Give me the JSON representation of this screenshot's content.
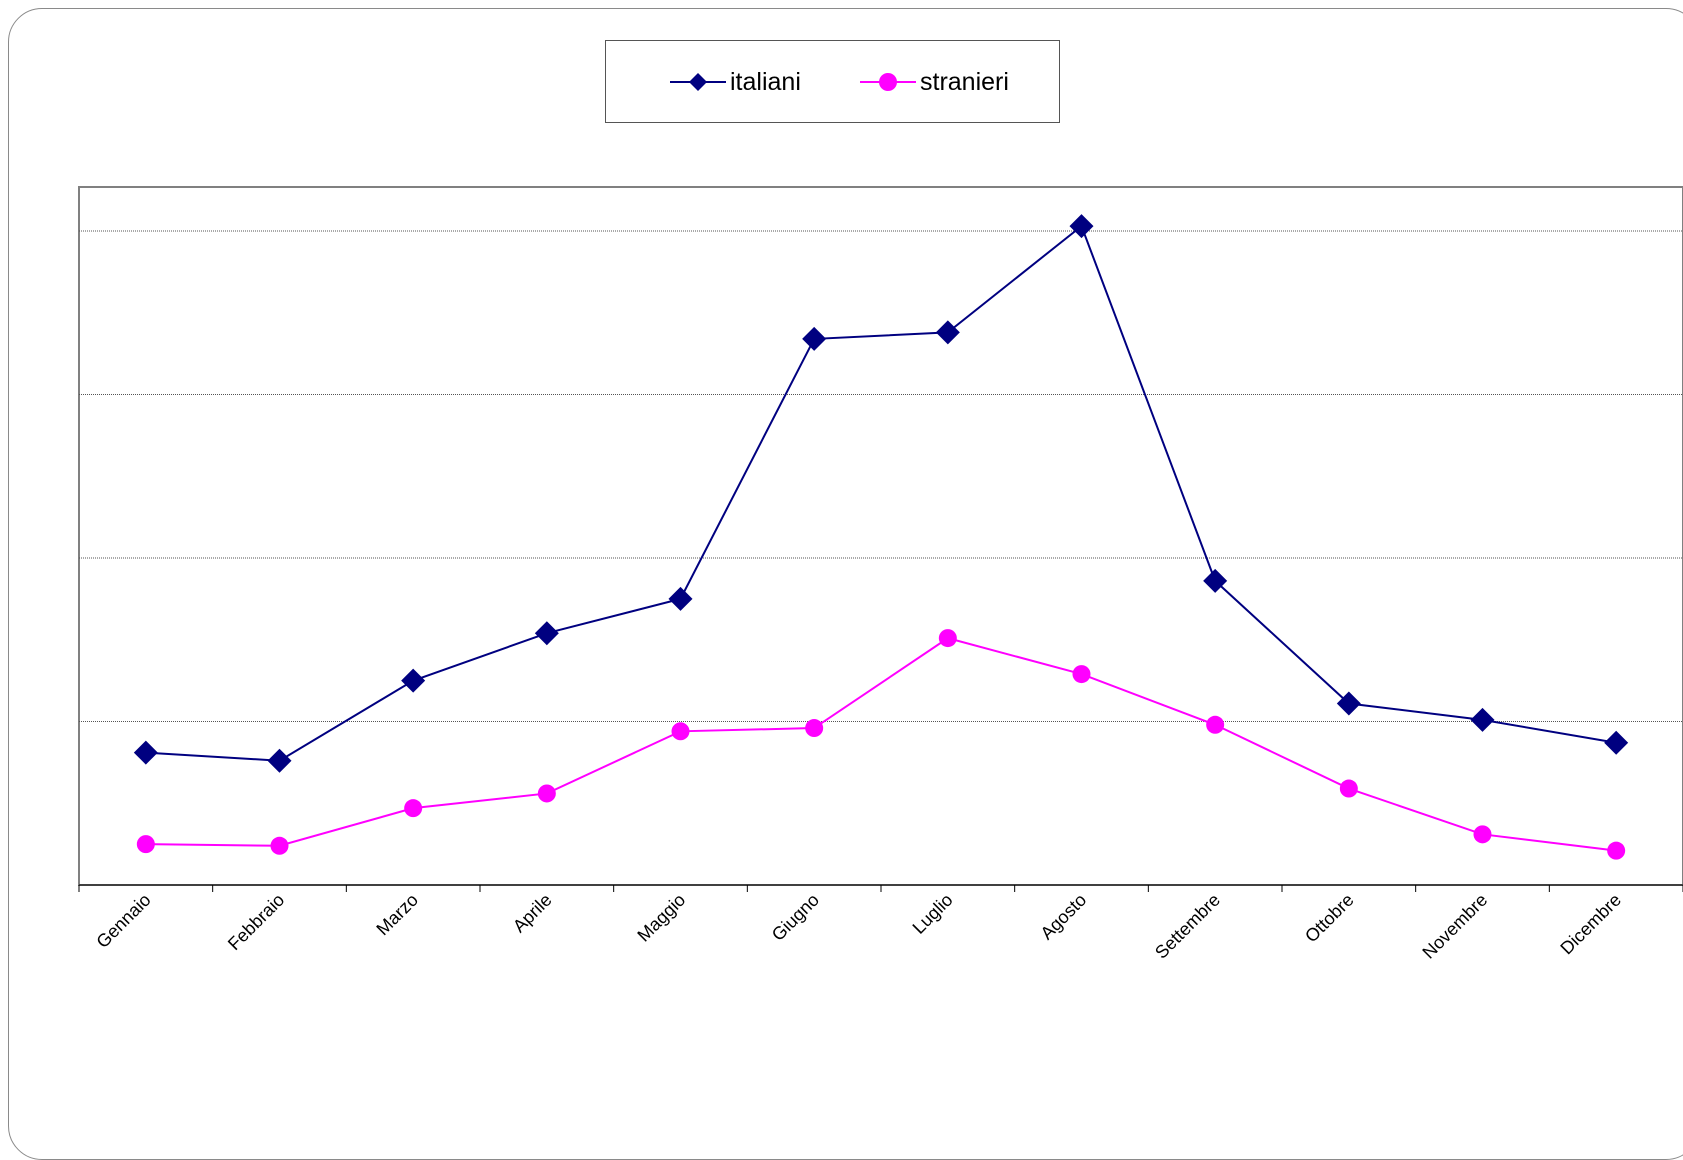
{
  "chart_data": {
    "type": "line",
    "categories": [
      "Gennaio",
      "Febbraio",
      "Marzo",
      "Aprile",
      "Maggio",
      "Giugno",
      "Luglio",
      "Agosto",
      "Settembre",
      "Ottobre",
      "Novembre",
      "Dicembre"
    ],
    "ylim": [
      0,
      400
    ],
    "gridlines": [
      100,
      200,
      300,
      400
    ],
    "grid": true,
    "legend_position": "top",
    "series": [
      {
        "name": "italiani",
        "color": "#000080",
        "marker": "diamond",
        "values": [
          81,
          76,
          125,
          154,
          175,
          334,
          338,
          403,
          186,
          111,
          101,
          87
        ]
      },
      {
        "name": "stranieri",
        "color": "#ff00ff",
        "marker": "circle",
        "values": [
          25,
          24,
          47,
          56,
          94,
          96,
          151,
          129,
          98,
          59,
          31,
          21
        ]
      }
    ]
  }
}
